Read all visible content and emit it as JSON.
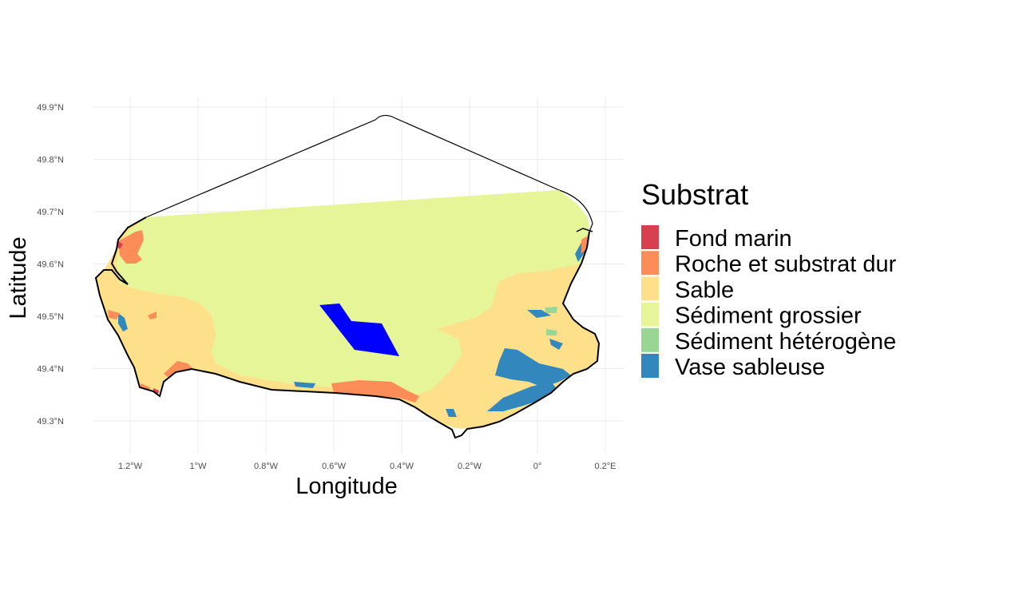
{
  "map": {
    "x_axis": {
      "title": "Longitude",
      "ticks": [
        {
          "label": "1.2°W",
          "value": -1.2
        },
        {
          "label": "1°W",
          "value": -1.0
        },
        {
          "label": "0.8°W",
          "value": -0.8
        },
        {
          "label": "0.6°W",
          "value": -0.6
        },
        {
          "label": "0.4°W",
          "value": -0.4
        },
        {
          "label": "0.2°W",
          "value": -0.2
        },
        {
          "label": "0°",
          "value": 0.0
        },
        {
          "label": "0.2°E",
          "value": 0.2
        }
      ]
    },
    "y_axis": {
      "title": "Latitude",
      "ticks": [
        {
          "label": "49.9°N",
          "value": 49.9
        },
        {
          "label": "49.8°N",
          "value": 49.8
        },
        {
          "label": "49.7°N",
          "value": 49.7
        },
        {
          "label": "49.6°N",
          "value": 49.6
        },
        {
          "label": "49.5°N",
          "value": 49.5
        },
        {
          "label": "49.4°N",
          "value": 49.4
        },
        {
          "label": "49.3°N",
          "value": 49.3
        }
      ]
    },
    "legend": {
      "title": "Substrat",
      "items": [
        {
          "label": "Fond marin",
          "color": "#d7404f"
        },
        {
          "label": "Roche et substrat dur",
          "color": "#fc8d59"
        },
        {
          "label": "Sable",
          "color": "#fee08b"
        },
        {
          "label": "Sédiment grossier",
          "color": "#e6f598"
        },
        {
          "label": "Sédiment hétérogène",
          "color": "#99d594"
        },
        {
          "label": "Vase sableuse",
          "color": "#3288bd"
        }
      ]
    },
    "highlight_zone_color": "#0000ff",
    "grid": "on",
    "background": "#ffffff"
  }
}
